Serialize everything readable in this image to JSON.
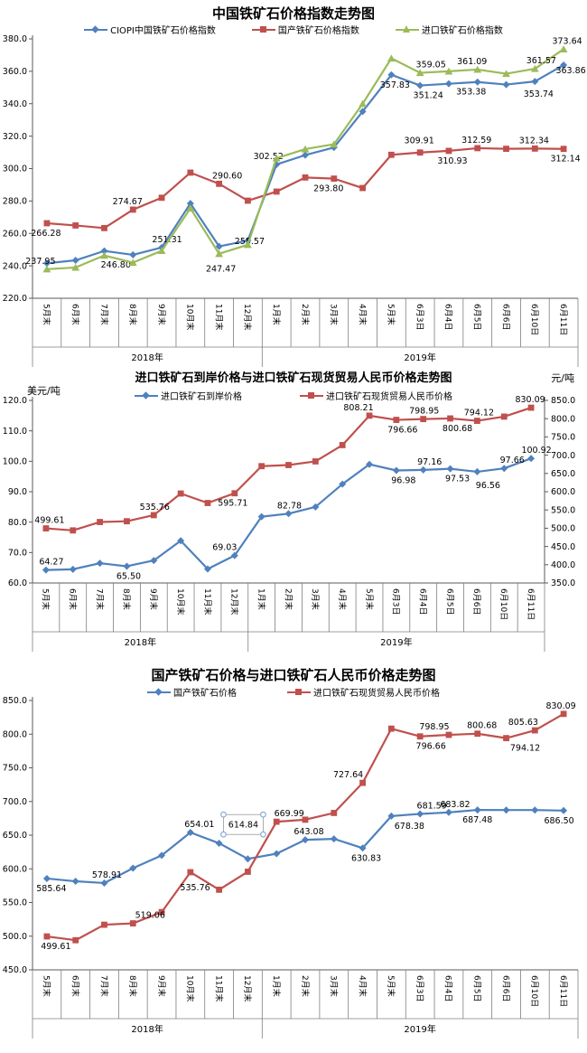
{
  "colors": {
    "blue": "#4F81BD",
    "red": "#C0504D",
    "green": "#9BBB59",
    "axis_line": "#595959",
    "grid_line": "#7f7f7f",
    "selection_handle": "#8cacd4"
  },
  "charts": [
    {
      "title": "中国铁矿石价格指数走势图",
      "y_left": {
        "min": 220,
        "max": 380,
        "step": 20,
        "decimals": 1
      },
      "categories": [
        "5月末",
        "6月末",
        "7月末",
        "8月末",
        "9月末",
        "10月末",
        "11月末",
        "12月末",
        "1月末",
        "2月末",
        "3月末",
        "4月末",
        "5月末",
        "6月3日",
        "6月4日",
        "6月5日",
        "6月6日",
        "6月10日",
        "6月11日"
      ],
      "groups": [
        {
          "label": "2018年",
          "span": 8
        },
        {
          "label": "2019年",
          "span": 11
        }
      ],
      "chart_data": {
        "type": "line",
        "legend_position": "top",
        "grid": false
      },
      "series": [
        {
          "name": "CIOPI中国铁矿石价格指数",
          "color": "#4F81BD",
          "marker": "diamond",
          "axis": "left",
          "values": [
            241.6,
            243.4,
            249.2,
            246.8,
            251.31,
            278.5,
            252.0,
            255.57,
            302.52,
            308.3,
            313.0,
            335.2,
            357.83,
            351.24,
            352.3,
            353.38,
            351.8,
            353.74,
            363.86
          ],
          "labels": [
            {
              "i": 3,
              "pos": "below",
              "dx": -19,
              "dy": 0
            },
            {
              "i": 4,
              "pos": "above",
              "dx": 6,
              "dy": 0
            },
            {
              "i": 7,
              "pos": "at",
              "dx": 2,
              "dy": 0
            },
            {
              "i": 8,
              "pos": "above",
              "dx": -9,
              "dy": 0
            },
            {
              "i": 12,
              "pos": "below",
              "dx": 4,
              "dy": 0
            },
            {
              "i": 13,
              "pos": "below",
              "dx": 9,
              "dy": 0
            },
            {
              "i": 15,
              "pos": "below",
              "dx": -7,
              "dy": 0
            },
            {
              "i": 17,
              "pos": "below",
              "dx": 4,
              "dy": 3
            },
            {
              "i": 18,
              "pos": "below",
              "dx": 8,
              "dy": -5
            }
          ]
        },
        {
          "name": "国产铁矿石价格指数",
          "color": "#C0504D",
          "marker": "square",
          "axis": "left",
          "values": [
            266.28,
            264.9,
            263.3,
            274.67,
            282.0,
            297.5,
            290.6,
            280.2,
            285.8,
            294.5,
            293.8,
            288.0,
            308.5,
            309.91,
            310.93,
            312.59,
            312.2,
            312.34,
            312.14
          ],
          "labels": [
            {
              "i": 0,
              "pos": "below",
              "dx": -1,
              "dy": 0
            },
            {
              "i": 3,
              "pos": "above",
              "dx": -6,
              "dy": 0
            },
            {
              "i": 6,
              "pos": "above",
              "dx": 9,
              "dy": 0
            },
            {
              "i": 10,
              "pos": "below",
              "dx": -6,
              "dy": 0
            },
            {
              "i": 13,
              "pos": "above",
              "dx": -1,
              "dy": -4
            },
            {
              "i": 14,
              "pos": "below",
              "dx": 4,
              "dy": 0
            },
            {
              "i": 15,
              "pos": "above",
              "dx": -1,
              "dy": 0
            },
            {
              "i": 17,
              "pos": "above",
              "dx": -1,
              "dy": 0
            },
            {
              "i": 18,
              "pos": "below",
              "dx": 2,
              "dy": 0
            }
          ]
        },
        {
          "name": "进口铁矿石价格指数",
          "color": "#9BBB59",
          "marker": "triangle",
          "axis": "left",
          "values": [
            237.95,
            239.0,
            246.4,
            242.0,
            249.3,
            275.5,
            247.47,
            253.0,
            306.4,
            312.0,
            315.0,
            340.0,
            368.0,
            359.05,
            360.0,
            361.09,
            358.5,
            361.57,
            373.64
          ],
          "labels": [
            {
              "i": 0,
              "pos": "above",
              "dx": -7,
              "dy": 0
            },
            {
              "i": 6,
              "pos": "below",
              "dx": 2,
              "dy": 6
            },
            {
              "i": 13,
              "pos": "above",
              "dx": 12,
              "dy": 0
            },
            {
              "i": 15,
              "pos": "above",
              "dx": -6,
              "dy": 0
            },
            {
              "i": 17,
              "pos": "above",
              "dx": 7,
              "dy": 0
            },
            {
              "i": 18,
              "pos": "above",
              "dx": 4,
              "dy": 0
            }
          ]
        }
      ]
    },
    {
      "title": "进口铁矿石到岸价格与进口铁矿石现货贸易人民币价格走势图",
      "unit_left": "美元/吨",
      "unit_right": "元/吨",
      "y_left": {
        "min": 60,
        "max": 120,
        "step": 10,
        "decimals": 1
      },
      "y_right": {
        "min": 350,
        "max": 850,
        "step": 50,
        "decimals": 1
      },
      "categories": [
        "5月末",
        "6月末",
        "7月末",
        "8月末",
        "9月末",
        "10月末",
        "11月末",
        "12月末",
        "1月末",
        "2月末",
        "3月末",
        "4月末",
        "5月末",
        "6月3日",
        "6月4日",
        "6月5日",
        "6月6日",
        "6月10日",
        "6月11日"
      ],
      "groups": [
        {
          "label": "2018年",
          "span": 8
        },
        {
          "label": "2019年",
          "span": 11
        }
      ],
      "chart_data": {
        "type": "line",
        "legend_position": "top",
        "grid": false
      },
      "series": [
        {
          "name": "进口铁矿石到岸价格",
          "color": "#4F81BD",
          "marker": "diamond",
          "axis": "left",
          "values": [
            64.27,
            64.5,
            66.5,
            65.5,
            67.4,
            73.9,
            64.6,
            69.03,
            81.8,
            82.78,
            85.0,
            92.5,
            99.0,
            96.98,
            97.16,
            97.53,
            96.56,
            97.66,
            100.92
          ],
          "labels": [
            {
              "i": 0,
              "pos": "above",
              "dx": 6,
              "dy": 0
            },
            {
              "i": 3,
              "pos": "below",
              "dx": 2,
              "dy": 0
            },
            {
              "i": 7,
              "pos": "above",
              "dx": -11,
              "dy": 0
            },
            {
              "i": 9,
              "pos": "above",
              "dx": 1,
              "dy": 0
            },
            {
              "i": 13,
              "pos": "below",
              "dx": 8,
              "dy": 0
            },
            {
              "i": 14,
              "pos": "above",
              "dx": 7,
              "dy": 0
            },
            {
              "i": 15,
              "pos": "below",
              "dx": 8,
              "dy": 0
            },
            {
              "i": 16,
              "pos": "below",
              "dx": 12,
              "dy": 4
            },
            {
              "i": 17,
              "pos": "above",
              "dx": 9,
              "dy": 0
            },
            {
              "i": 18,
              "pos": "above",
              "dx": 6,
              "dy": 0
            }
          ]
        },
        {
          "name": "进口铁矿石现货贸易人民币价格",
          "color": "#C0504D",
          "marker": "square",
          "axis": "right",
          "values": [
            499.61,
            494.0,
            517.0,
            519.06,
            535.76,
            595.0,
            569.0,
            595.71,
            669.99,
            673.0,
            683.0,
            727.64,
            808.21,
            796.66,
            798.95,
            800.68,
            794.12,
            805.63,
            830.09
          ],
          "labels": [
            {
              "i": 0,
              "pos": "above",
              "dx": 4,
              "dy": 0
            },
            {
              "i": 4,
              "pos": "above",
              "dx": 1,
              "dy": 0
            },
            {
              "i": 7,
              "pos": "below",
              "dx": -2,
              "dy": 0
            },
            {
              "i": 12,
              "pos": "above",
              "dx": -12,
              "dy": 0
            },
            {
              "i": 13,
              "pos": "below",
              "dx": 7,
              "dy": 0
            },
            {
              "i": 14,
              "pos": "above",
              "dx": 1,
              "dy": 0
            },
            {
              "i": 15,
              "pos": "below",
              "dx": 8,
              "dy": 0
            },
            {
              "i": 16,
              "pos": "above",
              "dx": 2,
              "dy": 0
            },
            {
              "i": 18,
              "pos": "above",
              "dx": -1,
              "dy": 0
            }
          ]
        }
      ]
    },
    {
      "title": "国产铁矿石价格与进口铁矿石人民币价格走势图",
      "y_left": {
        "min": 450,
        "max": 850,
        "step": 50,
        "decimals": 1
      },
      "categories": [
        "5月末",
        "6月末",
        "7月末",
        "8月末",
        "9月末",
        "10月末",
        "11月末",
        "12月末",
        "1月末",
        "2月末",
        "3月末",
        "4月末",
        "5月末",
        "6月3日",
        "6月4日",
        "6月5日",
        "6月6日",
        "6月10日",
        "6月11日"
      ],
      "groups": [
        {
          "label": "2018年",
          "span": 8
        },
        {
          "label": "2019年",
          "span": 11
        }
      ],
      "chart_data": {
        "type": "line",
        "legend_position": "top",
        "grid": false
      },
      "series": [
        {
          "name": "国产铁矿石价格",
          "color": "#4F81BD",
          "marker": "diamond",
          "axis": "left",
          "values": [
            585.64,
            581.5,
            578.91,
            601.0,
            620.0,
            654.01,
            638.0,
            614.84,
            622.5,
            643.08,
            644.5,
            630.83,
            678.38,
            681.59,
            683.82,
            687.48,
            687.3,
            687.3,
            686.5
          ],
          "labels": [
            {
              "i": 0,
              "pos": "below",
              "dx": 5,
              "dy": 0
            },
            {
              "i": 2,
              "pos": "above",
              "dx": 3,
              "dy": 0
            },
            {
              "i": 5,
              "pos": "above",
              "dx": 10,
              "dy": 0
            },
            {
              "i": 7,
              "pos": "box",
              "dx": -5,
              "dy": -38
            },
            {
              "i": 9,
              "pos": "above",
              "dx": 4,
              "dy": 0
            },
            {
              "i": 11,
              "pos": "below",
              "dx": 4,
              "dy": 0
            },
            {
              "i": 12,
              "pos": "below",
              "dx": 20,
              "dy": 0
            },
            {
              "i": 13,
              "pos": "above",
              "dx": 13,
              "dy": 0
            },
            {
              "i": 14,
              "pos": "above",
              "dx": 7,
              "dy": 0
            },
            {
              "i": 15,
              "pos": "below",
              "dx": 0,
              "dy": 0
            },
            {
              "i": 18,
              "pos": "below",
              "dx": -5,
              "dy": 0
            }
          ]
        },
        {
          "name": "进口铁矿石现货贸易人民币价格",
          "color": "#C0504D",
          "marker": "square",
          "axis": "left",
          "values": [
            499.61,
            494.0,
            517.0,
            519.06,
            535.76,
            595.0,
            569.0,
            595.71,
            669.99,
            673.0,
            683.0,
            727.64,
            808.21,
            796.66,
            798.95,
            800.68,
            794.12,
            805.63,
            830.09
          ],
          "labels": [
            {
              "i": 0,
              "pos": "below",
              "dx": 10,
              "dy": 0
            },
            {
              "i": 3,
              "pos": "above",
              "dx": 19,
              "dy": 0
            },
            {
              "i": 4,
              "pos": "above",
              "dx": 37,
              "dy": -18
            },
            {
              "i": 8,
              "pos": "above",
              "dx": 14,
              "dy": 0
            },
            {
              "i": 11,
              "pos": "above",
              "dx": -16,
              "dy": 0
            },
            {
              "i": 13,
              "pos": "below",
              "dx": 12,
              "dy": 0
            },
            {
              "i": 14,
              "pos": "above",
              "dx": -16,
              "dy": 0
            },
            {
              "i": 15,
              "pos": "above",
              "dx": 5,
              "dy": 0
            },
            {
              "i": 16,
              "pos": "below",
              "dx": 21,
              "dy": 0
            },
            {
              "i": 17,
              "pos": "above",
              "dx": -13,
              "dy": 0
            },
            {
              "i": 18,
              "pos": "above",
              "dx": -3,
              "dy": 0
            }
          ]
        }
      ]
    }
  ]
}
